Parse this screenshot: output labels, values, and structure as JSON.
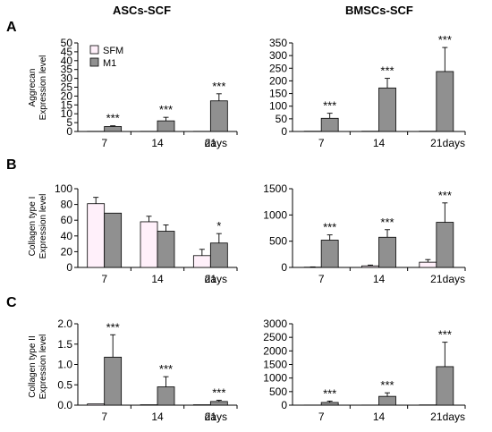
{
  "column_titles": [
    "ASCs-SCF",
    "BMSCs-SCF"
  ],
  "row_labels": [
    "A",
    "B",
    "C"
  ],
  "row_ylabels": [
    [
      "Aggrecan",
      "Expression level"
    ],
    [
      "Collagen type I",
      "Expression level"
    ],
    [
      "Collagen type II",
      "Expression level"
    ]
  ],
  "x_unit": "days",
  "legend": {
    "items": [
      "SFM",
      "M1"
    ]
  },
  "colors": {
    "SFM": "#fff0fa",
    "M1": "#909090",
    "axis": "#000000"
  },
  "chart_data": [
    {
      "type": "bar",
      "row": 0,
      "col": 0,
      "categories": [
        "7",
        "14",
        "21"
      ],
      "series": [
        {
          "name": "SFM",
          "values": [
            0.1,
            0.1,
            0.1
          ],
          "errors": [
            0,
            0,
            0
          ]
        },
        {
          "name": "M1",
          "values": [
            2.8,
            6.0,
            17.3
          ],
          "errors": [
            0.4,
            2.0,
            4.0
          ]
        }
      ],
      "yticks": [
        0,
        5,
        10,
        15,
        20,
        25,
        30,
        35,
        40,
        45,
        50
      ],
      "ylim": [
        0,
        50
      ],
      "annotations": [
        "***",
        "***",
        "***"
      ],
      "legend": "top-left"
    },
    {
      "type": "bar",
      "row": 0,
      "col": 1,
      "categories": [
        "7",
        "14",
        "21"
      ],
      "series": [
        {
          "name": "SFM",
          "values": [
            1,
            1,
            1
          ],
          "errors": [
            0,
            0,
            0
          ]
        },
        {
          "name": "M1",
          "values": [
            52,
            172,
            237
          ],
          "errors": [
            20,
            38,
            95
          ]
        }
      ],
      "yticks": [
        0,
        50,
        100,
        150,
        200,
        250,
        300,
        350
      ],
      "ylim": [
        0,
        350
      ],
      "annotations": [
        "***",
        "***",
        "***"
      ]
    },
    {
      "type": "bar",
      "row": 1,
      "col": 0,
      "categories": [
        "7",
        "14",
        "21"
      ],
      "series": [
        {
          "name": "SFM",
          "values": [
            81,
            58,
            15
          ],
          "errors": [
            8,
            7,
            8
          ]
        },
        {
          "name": "M1",
          "values": [
            69,
            46,
            31
          ],
          "errors": [
            0,
            8,
            12
          ]
        }
      ],
      "yticks": [
        0,
        20,
        40,
        60,
        80,
        100
      ],
      "ylim": [
        0,
        100
      ],
      "annotations": [
        "",
        "",
        "*"
      ]
    },
    {
      "type": "bar",
      "row": 1,
      "col": 1,
      "categories": [
        "7",
        "14",
        "21"
      ],
      "series": [
        {
          "name": "SFM",
          "values": [
            5,
            30,
            100
          ],
          "errors": [
            5,
            15,
            50
          ]
        },
        {
          "name": "M1",
          "values": [
            520,
            575,
            860
          ],
          "errors": [
            100,
            145,
            370
          ]
        }
      ],
      "yticks": [
        0,
        500,
        1000,
        1500
      ],
      "ylim": [
        0,
        1500
      ],
      "annotations": [
        "***",
        "***",
        "***"
      ]
    },
    {
      "type": "bar",
      "row": 2,
      "col": 0,
      "categories": [
        "7",
        "14",
        "21"
      ],
      "series": [
        {
          "name": "SFM",
          "values": [
            0.03,
            0.01,
            0.01
          ],
          "errors": [
            0,
            0,
            0
          ]
        },
        {
          "name": "M1",
          "values": [
            1.18,
            0.45,
            0.09
          ],
          "errors": [
            0.55,
            0.25,
            0.03
          ]
        }
      ],
      "yticks": [
        0.0,
        0.5,
        1.0,
        1.5,
        2.0
      ],
      "ylim": [
        0,
        2.0
      ],
      "annotations": [
        "***",
        "***",
        "***"
      ]
    },
    {
      "type": "bar",
      "row": 2,
      "col": 1,
      "categories": [
        "7",
        "14",
        "21"
      ],
      "series": [
        {
          "name": "SFM",
          "values": [
            5,
            5,
            10
          ],
          "errors": [
            0,
            0,
            0
          ]
        },
        {
          "name": "M1",
          "values": [
            100,
            325,
            1420
          ],
          "errors": [
            50,
            130,
            900
          ]
        }
      ],
      "yticks": [
        0,
        500,
        1000,
        1500,
        2000,
        2500,
        3000
      ],
      "ylim": [
        0,
        3000
      ],
      "annotations": [
        "***",
        "***",
        "***"
      ]
    }
  ]
}
